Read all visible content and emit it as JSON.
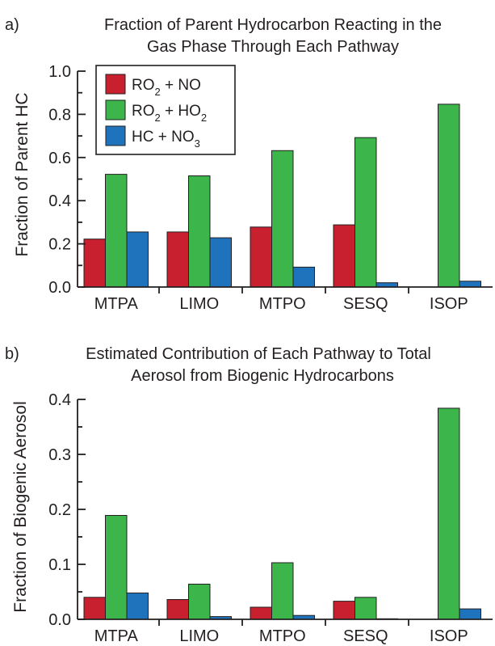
{
  "colors": {
    "ro2_no": "#c8202f",
    "ro2_ho2": "#3cb54a",
    "hc_no3": "#1f73bd"
  },
  "legend": {
    "items": [
      {
        "key": "ro2_no",
        "main": "RO",
        "sub": "2",
        "rest": " + NO",
        "sub2": ""
      },
      {
        "key": "ro2_ho2",
        "main": "RO",
        "sub": "2",
        "rest": " + HO",
        "sub2": "2"
      },
      {
        "key": "hc_no3",
        "main": "HC + NO",
        "sub": "",
        "rest": "",
        "sub2": "3"
      }
    ]
  },
  "chart_data": [
    {
      "type": "bar",
      "panel_label": "a)",
      "title_line1": "Fraction of Parent Hydrocarbon Reacting in the",
      "title_line2": "Gas Phase Through Each Pathway",
      "xlabel": "",
      "ylabel": "Fraction of Parent HC",
      "ylim": [
        0,
        1.0
      ],
      "yticks": [
        "0.0",
        "0.2",
        "0.4",
        "0.6",
        "0.8",
        "1.0"
      ],
      "ytick_values": [
        0,
        0.2,
        0.4,
        0.6,
        0.8,
        1.0
      ],
      "categories": [
        "MTPA",
        "LIMO",
        "MTPO",
        "SESQ",
        "ISOP"
      ],
      "legend_position": "top-left",
      "series": [
        {
          "key": "ro2_no",
          "name": "RO2 + NO",
          "values": [
            0.222,
            0.255,
            0.278,
            0.288,
            0.0
          ]
        },
        {
          "key": "ro2_ho2",
          "name": "RO2 + HO2",
          "values": [
            0.522,
            0.515,
            0.632,
            0.692,
            0.847
          ]
        },
        {
          "key": "hc_no3",
          "name": "HC + NO3",
          "values": [
            0.255,
            0.228,
            0.092,
            0.02,
            0.027
          ]
        }
      ]
    },
    {
      "type": "bar",
      "panel_label": "b)",
      "title_line1": "Estimated Contribution of Each Pathway to Total",
      "title_line2": "Aerosol from Biogenic Hydrocarbons",
      "xlabel": "",
      "ylabel": "Fraction of Biogenic Aerosol",
      "ylim": [
        0,
        0.4
      ],
      "yticks": [
        "0.0",
        "0.1",
        "0.2",
        "0.3",
        "0.4"
      ],
      "ytick_values": [
        0,
        0.1,
        0.2,
        0.3,
        0.4
      ],
      "categories": [
        "MTPA",
        "LIMO",
        "MTPO",
        "SESQ",
        "ISOP"
      ],
      "legend_position": "none",
      "series": [
        {
          "key": "ro2_no",
          "name": "RO2 + NO",
          "values": [
            0.04,
            0.036,
            0.022,
            0.033,
            0.0
          ]
        },
        {
          "key": "ro2_ho2",
          "name": "RO2 + HO2",
          "values": [
            0.189,
            0.064,
            0.103,
            0.04,
            0.384
          ]
        },
        {
          "key": "hc_no3",
          "name": "HC + NO3",
          "values": [
            0.048,
            0.005,
            0.007,
            0.001,
            0.019
          ]
        }
      ]
    }
  ]
}
